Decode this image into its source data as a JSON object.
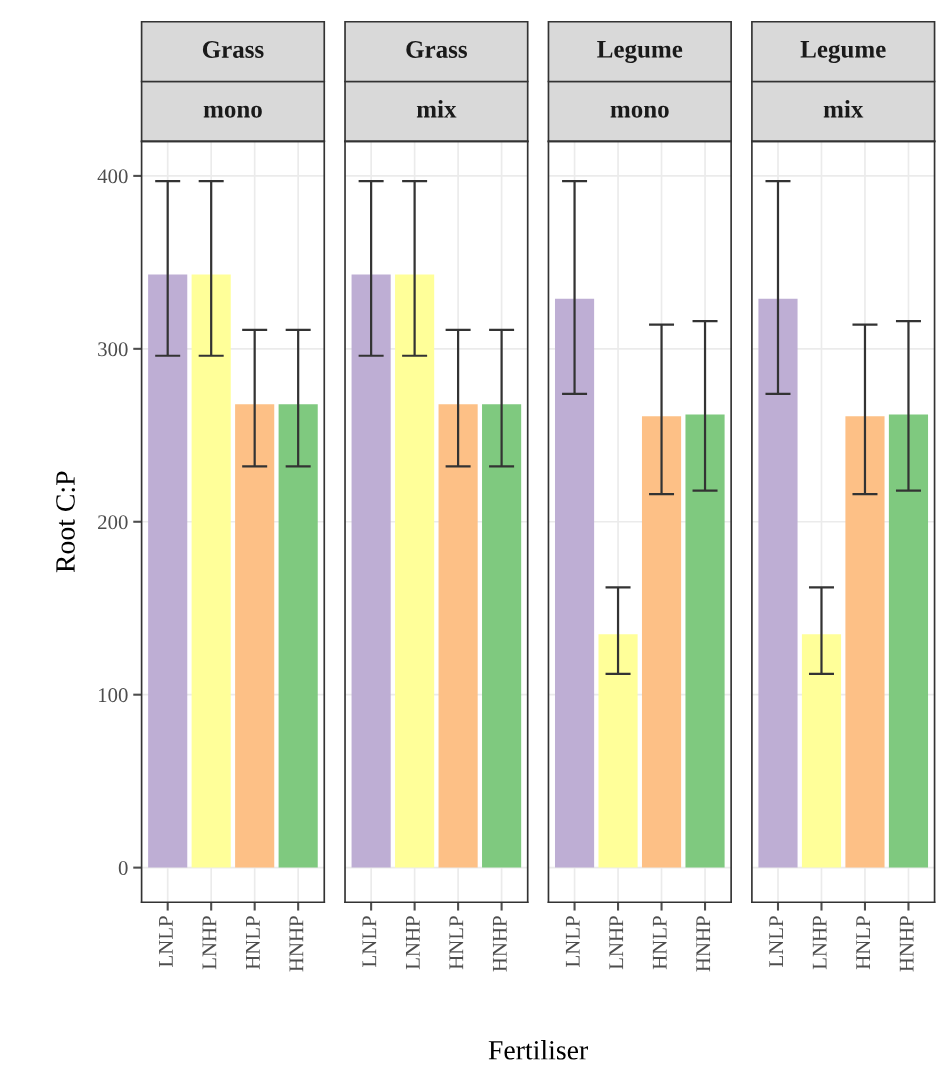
{
  "chart_data": [
    {
      "type": "bar",
      "title": "Grass",
      "subtitle": "mono",
      "ylabel": "Root C:P",
      "xlabel": "Fertiliser",
      "categories": [
        "LNLP",
        "LNHP",
        "HNLP",
        "HNHP"
      ],
      "values": [
        343,
        343,
        268,
        268
      ],
      "colors": [
        "#beaed4",
        "#ffff99",
        "#fdc086",
        "#7fc97f"
      ],
      "errors": [
        [
          296,
          397
        ],
        [
          296,
          397
        ],
        [
          232,
          311
        ],
        [
          232,
          311
        ]
      ],
      "ylim": [
        -20,
        420
      ],
      "yticks": [
        0,
        100,
        200,
        300,
        400
      ],
      "grid": true
    },
    {
      "type": "bar",
      "title": "Grass",
      "subtitle": "mix",
      "categories": [
        "LNLP",
        "LNHP",
        "HNLP",
        "HNHP"
      ],
      "values": [
        343,
        343,
        268,
        268
      ],
      "colors": [
        "#beaed4",
        "#ffff99",
        "#fdc086",
        "#7fc97f"
      ],
      "errors": [
        [
          296,
          397
        ],
        [
          296,
          397
        ],
        [
          232,
          311
        ],
        [
          232,
          311
        ]
      ],
      "ylim": [
        -20,
        420
      ],
      "yticks": [
        0,
        100,
        200,
        300,
        400
      ],
      "grid": true,
      "tick_labels": "x"
    },
    {
      "type": "bar",
      "title": "Legume",
      "subtitle": "mono",
      "categories": [
        "LNLP",
        "LNHP",
        "HNLP",
        "HNHP"
      ],
      "values": [
        329,
        135,
        261,
        262
      ],
      "colors": [
        "#beaed4",
        "#ffff99",
        "#fdc086",
        "#7fc97f"
      ],
      "errors": [
        [
          274,
          397
        ],
        [
          112,
          162
        ],
        [
          216,
          314
        ],
        [
          218,
          316
        ]
      ],
      "ylim": [
        -20,
        420
      ],
      "yticks": [
        0,
        100,
        200,
        300,
        400
      ],
      "grid": true,
      "tick_labels": "x"
    },
    {
      "type": "bar",
      "title": "Legume",
      "subtitle": "mix",
      "categories": [
        "LNLP",
        "LNHP",
        "HNLP",
        "HNHP"
      ],
      "values": [
        329,
        135,
        261,
        262
      ],
      "colors": [
        "#beaed4",
        "#ffff99",
        "#fdc086",
        "#7fc97f"
      ],
      "errors": [
        [
          274,
          397
        ],
        [
          112,
          162
        ],
        [
          216,
          314
        ],
        [
          218,
          316
        ]
      ],
      "ylim": [
        -20,
        420
      ],
      "yticks": [
        0,
        100,
        200,
        300,
        400
      ],
      "grid": true,
      "tick_labels": "x"
    }
  ]
}
